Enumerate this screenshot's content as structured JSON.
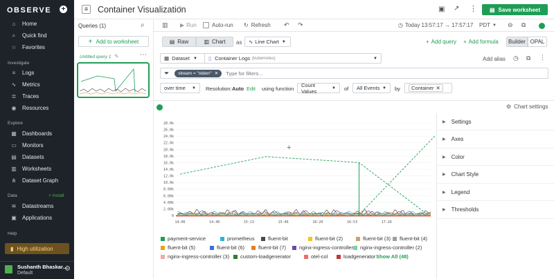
{
  "brand": {
    "logo_text": "OBSERVE"
  },
  "sidebar": {
    "top_items": [
      {
        "label": "Home",
        "icon": "home-icon",
        "glyph": "⌂"
      },
      {
        "label": "Quick find",
        "icon": "search-icon",
        "glyph": "⌕"
      },
      {
        "label": "Favorites",
        "icon": "star-icon",
        "glyph": "☆"
      }
    ],
    "investigate_label": "Investigate",
    "investigate_items": [
      {
        "label": "Logs",
        "icon": "logs-icon",
        "glyph": "≡"
      },
      {
        "label": "Metrics",
        "icon": "metrics-icon",
        "glyph": "∿"
      },
      {
        "label": "Traces",
        "icon": "traces-icon",
        "glyph": "≣"
      },
      {
        "label": "Resources",
        "icon": "resources-icon",
        "glyph": "◉"
      }
    ],
    "explore_label": "Explore",
    "explore_items": [
      {
        "label": "Dashboards",
        "icon": "dashboards-icon",
        "glyph": "▦"
      },
      {
        "label": "Monitors",
        "icon": "monitors-icon",
        "glyph": "▭"
      },
      {
        "label": "Datasets",
        "icon": "datasets-icon",
        "glyph": "▤"
      },
      {
        "label": "Worksheets",
        "icon": "worksheets-icon",
        "glyph": "▥"
      },
      {
        "label": "Dataset Graph",
        "icon": "dataset-graph-icon",
        "glyph": "⋔"
      }
    ],
    "data_label": "Data",
    "install_label": "+ Install",
    "data_items": [
      {
        "label": "Datastreams",
        "icon": "datastreams-icon",
        "glyph": "≋"
      },
      {
        "label": "Applications",
        "icon": "applications-icon",
        "glyph": "▣"
      }
    ],
    "help_label": "Help",
    "high_utilization": "High utilization",
    "user_name": "Sushanth Bhaskar...",
    "user_sub": "Default"
  },
  "header": {
    "title": "Container Visualization",
    "save_label": "Save worksheet"
  },
  "queries": {
    "label": "Queries (1)",
    "add_worksheet": "Add to worksheet",
    "query_name": "Untitled query 1"
  },
  "toolbar": {
    "run": "Run",
    "auto_run": "Auto-run",
    "refresh": "Refresh",
    "time_range": "Today 13:57:17 → 17:57:17",
    "timezone": "PDT"
  },
  "view": {
    "raw": "Raw",
    "chart": "Chart",
    "as": "as",
    "chart_type": "Line Chart",
    "add_query": "Add query",
    "add_formula": "Add formula",
    "builder": "Builder",
    "opal": "OPAL"
  },
  "dataset_row": {
    "dataset_label": "Dataset",
    "dataset_name": "Container Logs",
    "dataset_sub": "(kubernetes)",
    "add_alias": "Add alias"
  },
  "filter_row": {
    "filter_pill": "stream = \"stderr\"",
    "placeholder": "Type for filters..."
  },
  "fn_row": {
    "over_time": "over time",
    "resolution_label": "Resolution:",
    "resolution_value": "Auto",
    "edit": "Edit",
    "using_function": "using function",
    "function": "Count Values",
    "of": "of",
    "of_value": "All Events",
    "by": "by",
    "by_value": "Container"
  },
  "chart_settings_label": "Chart settings",
  "settings_sections": [
    "Settings",
    "Axes",
    "Color",
    "Chart Style",
    "Legend",
    "Thresholds"
  ],
  "legend": {
    "items": [
      {
        "name": "payment-service",
        "color": "#1f9d55"
      },
      {
        "name": "prometheus",
        "color": "#26b5d9"
      },
      {
        "name": "fluent-bit",
        "color": "#4a4a4a"
      },
      {
        "name": "fluent-bit (2)",
        "color": "#f5c518"
      },
      {
        "name": "fluent-bit (3)",
        "color": "#c9a36b"
      },
      {
        "name": "fluent-bit (4)",
        "color": "#9e9e9e"
      },
      {
        "name": "fluent-bit (5)",
        "color": "#f39c12"
      },
      {
        "name": "fluent-bit (6)",
        "color": "#3a6fd8"
      },
      {
        "name": "fluent-bit (7)",
        "color": "#e67e22"
      },
      {
        "name": "nginx-ingress-controller",
        "color": "#6b4aa5"
      },
      {
        "name": "nginx-ingress-controller (2)",
        "color": "#7bcfa8"
      },
      {
        "name": "nginx-ingress-controller (3)",
        "color": "#f4a6a6"
      },
      {
        "name": "custom-loadgenerator",
        "color": "#2e7d32"
      },
      {
        "name": "otel-col",
        "color": "#ef6c6c"
      },
      {
        "name": "loadgenerator",
        "color": "#c0392b"
      }
    ],
    "show_all": "Show All (48)"
  },
  "chart_data": {
    "type": "line",
    "title": "",
    "xlabel": "",
    "ylabel": "",
    "x_ticks": [
      "14:06",
      "14:40",
      "15:13",
      "15:46",
      "16:20",
      "16:53",
      "17:26"
    ],
    "y_ticks": [
      "0",
      "2.00k",
      "4.00k",
      "6.00k",
      "8.00k",
      "10.0k",
      "12.0k",
      "14.0k",
      "16.0k",
      "18.0k",
      "20.0k",
      "22.0k",
      "24.0k",
      "26.0k",
      "28.0k"
    ],
    "ylim": [
      0,
      28000
    ],
    "xlim": [
      0,
      7
    ],
    "series": [
      {
        "name": "payment-service",
        "color": "#1f9d55",
        "dashed": true,
        "x": [
          0,
          2.5,
          5.2,
          7.2
        ],
        "values": [
          12500,
          17800,
          16000,
          200
        ]
      },
      {
        "name": "payment-service",
        "color": "#1f9d55",
        "dashed": true,
        "x": [
          5.2,
          7.6
        ],
        "values": [
          200,
          26200
        ]
      }
    ]
  }
}
